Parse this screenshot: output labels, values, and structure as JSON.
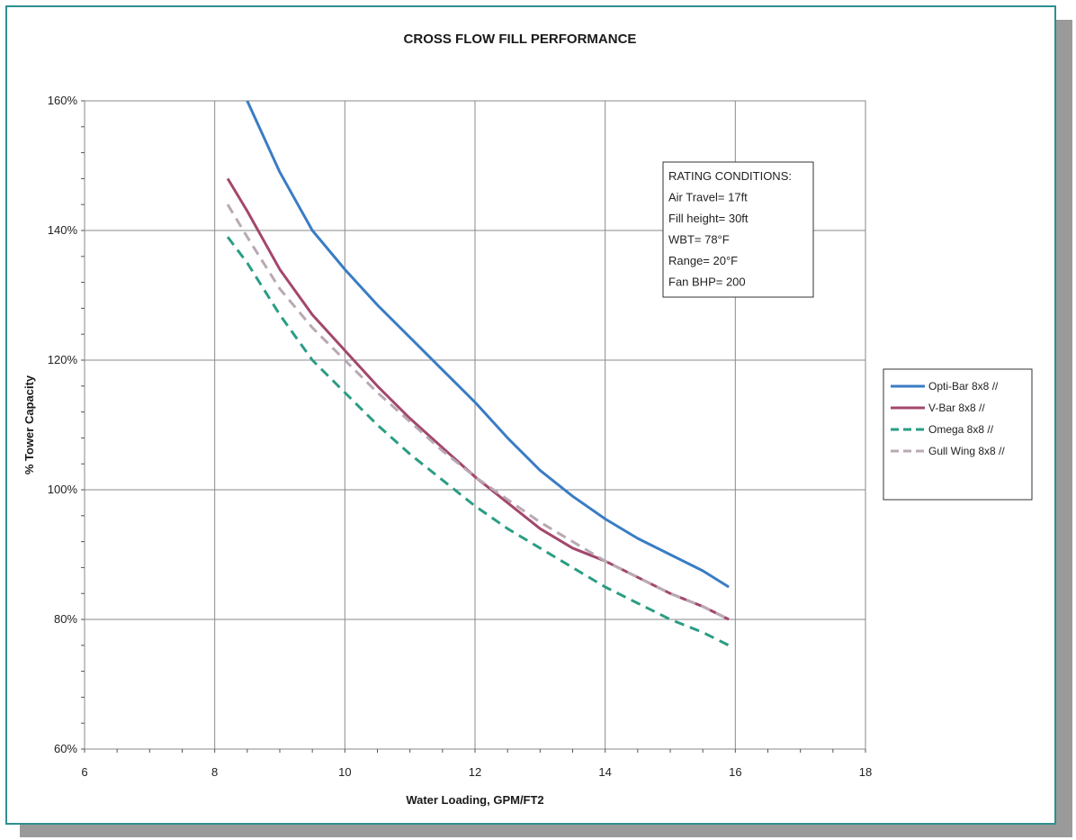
{
  "chart_data": {
    "type": "line",
    "title": "CROSS FLOW FILL PERFORMANCE",
    "xlabel": "Water Loading, GPM/FT2",
    "ylabel": "% Tower Capacity",
    "xlim": [
      6,
      18
    ],
    "ylim": [
      60,
      160
    ],
    "x_ticks": [
      "6",
      "8",
      "10",
      "12",
      "14",
      "16",
      "18"
    ],
    "y_ticks": [
      "60%",
      "80%",
      "100%",
      "120%",
      "140%",
      "160%"
    ],
    "grid": true,
    "legend_position": "right",
    "annotation": {
      "lines": [
        "RATING CONDITIONS:",
        "Air Travel= 17ft",
        "Fill height= 30ft",
        "WBT= 78°F",
        "Range= 20°F",
        "Fan BHP= 200"
      ]
    },
    "series": [
      {
        "name": "Opti-Bar 8x8 //",
        "color": "#3a7cc4",
        "dash": "solid",
        "points": [
          [
            8.5,
            160
          ],
          [
            9,
            149
          ],
          [
            9.5,
            140
          ],
          [
            10,
            134
          ],
          [
            10.5,
            128.5
          ],
          [
            11,
            123.5
          ],
          [
            11.5,
            118.5
          ],
          [
            12,
            113.5
          ],
          [
            12.5,
            108
          ],
          [
            13,
            103
          ],
          [
            13.5,
            99
          ],
          [
            14,
            95.5
          ],
          [
            14.5,
            92.5
          ],
          [
            15,
            90
          ],
          [
            15.5,
            87.5
          ],
          [
            15.9,
            85
          ]
        ]
      },
      {
        "name": "V-Bar 8x8 //",
        "color": "#a3476c",
        "dash": "solid",
        "points": [
          [
            8.2,
            148
          ],
          [
            8.5,
            143
          ],
          [
            9,
            134
          ],
          [
            9.5,
            127
          ],
          [
            10,
            121.5
          ],
          [
            10.5,
            116
          ],
          [
            11,
            111
          ],
          [
            11.5,
            106.5
          ],
          [
            12,
            102
          ],
          [
            12.5,
            98
          ],
          [
            13,
            94
          ],
          [
            13.5,
            91
          ],
          [
            14,
            89
          ],
          [
            14.5,
            86.5
          ],
          [
            15,
            84
          ],
          [
            15.5,
            82
          ],
          [
            15.9,
            80
          ]
        ]
      },
      {
        "name": "Omega 8x8 //",
        "color": "#2a9d84",
        "dash": "dashed",
        "points": [
          [
            8.2,
            139
          ],
          [
            8.5,
            135
          ],
          [
            9,
            127
          ],
          [
            9.5,
            120
          ],
          [
            10,
            115
          ],
          [
            10.5,
            110
          ],
          [
            11,
            105.5
          ],
          [
            11.5,
            101.5
          ],
          [
            12,
            97.5
          ],
          [
            12.5,
            94
          ],
          [
            13,
            91
          ],
          [
            13.5,
            88
          ],
          [
            14,
            85
          ],
          [
            14.5,
            82.5
          ],
          [
            15,
            80
          ],
          [
            15.5,
            78
          ],
          [
            15.9,
            76
          ]
        ]
      },
      {
        "name": "Gull Wing 8x8 //",
        "color": "#b9a9b4",
        "dash": "dashed",
        "points": [
          [
            8.2,
            144
          ],
          [
            8.5,
            139
          ],
          [
            9,
            131
          ],
          [
            9.5,
            125
          ],
          [
            10,
            120
          ],
          [
            10.5,
            115
          ],
          [
            11,
            110.5
          ],
          [
            11.5,
            106
          ],
          [
            12,
            102
          ],
          [
            12.5,
            98.5
          ],
          [
            13,
            95
          ],
          [
            13.5,
            92
          ],
          [
            14,
            89
          ],
          [
            14.5,
            86.5
          ],
          [
            15,
            84
          ],
          [
            15.5,
            82
          ],
          [
            15.9,
            80
          ]
        ]
      }
    ]
  }
}
